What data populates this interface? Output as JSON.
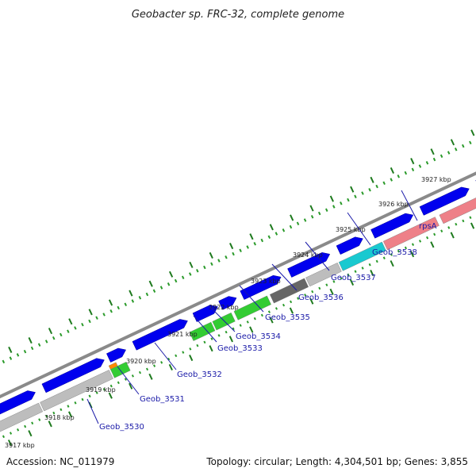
{
  "title": "Geobacter sp. FRC-32, complete genome",
  "footer": {
    "accession": "Accession: NC_011979",
    "summary": "Topology: circular; Length: 4,304,501 bp; Genes: 3,855"
  },
  "colors": {
    "backbone": "#8a8a8a",
    "forward_gene": "#0000ee",
    "grey_gene": "#bdbdbd",
    "dark_grey_gene": "#666666",
    "green_gene": "#33cc33",
    "orange_gene": "#ff8800",
    "cyan_gene": "#19c9d0",
    "pink_gene": "#ee8088",
    "tick_major": "#1e7a1e",
    "tick_minor": "#2a9a2a",
    "label": "#1a1aa8"
  },
  "scale_labels": [
    "3917 kbp",
    "3918 kbp",
    "3919 kbp",
    "3920 kbp",
    "3921 kbp",
    "3922 kbp",
    "3923 kbp",
    "3924 kbp",
    "3925 kbp",
    "3926 kbp",
    "3927 kbp"
  ],
  "genes_forward": [
    {
      "name": "forward-1"
    },
    {
      "name": "forward-2"
    },
    {
      "name": "forward-3"
    },
    {
      "name": "forward-4"
    },
    {
      "name": "forward-5"
    },
    {
      "name": "forward-6"
    },
    {
      "name": "forward-7"
    },
    {
      "name": "forward-8"
    },
    {
      "name": "forward-9"
    },
    {
      "name": "forward-10"
    },
    {
      "name": "forward-11"
    },
    {
      "name": "forward-12"
    }
  ],
  "genes_reverse": [
    {
      "label": "Geob_3530",
      "color": "grey"
    },
    {
      "label": "Geob_3531",
      "color": "green"
    },
    {
      "label": "Geob_3532",
      "color": "none"
    },
    {
      "label": "Geob_3533",
      "color": "green"
    },
    {
      "label": "Geob_3534",
      "color": "green"
    },
    {
      "label": "Geob_3535",
      "color": "green"
    },
    {
      "label": "Geob_3536",
      "color": "dark_grey"
    },
    {
      "label": "Geob_3537",
      "color": "grey"
    },
    {
      "label": "Geob_3538",
      "color": "cyan"
    },
    {
      "label": "rpsA",
      "color": "pink"
    }
  ]
}
